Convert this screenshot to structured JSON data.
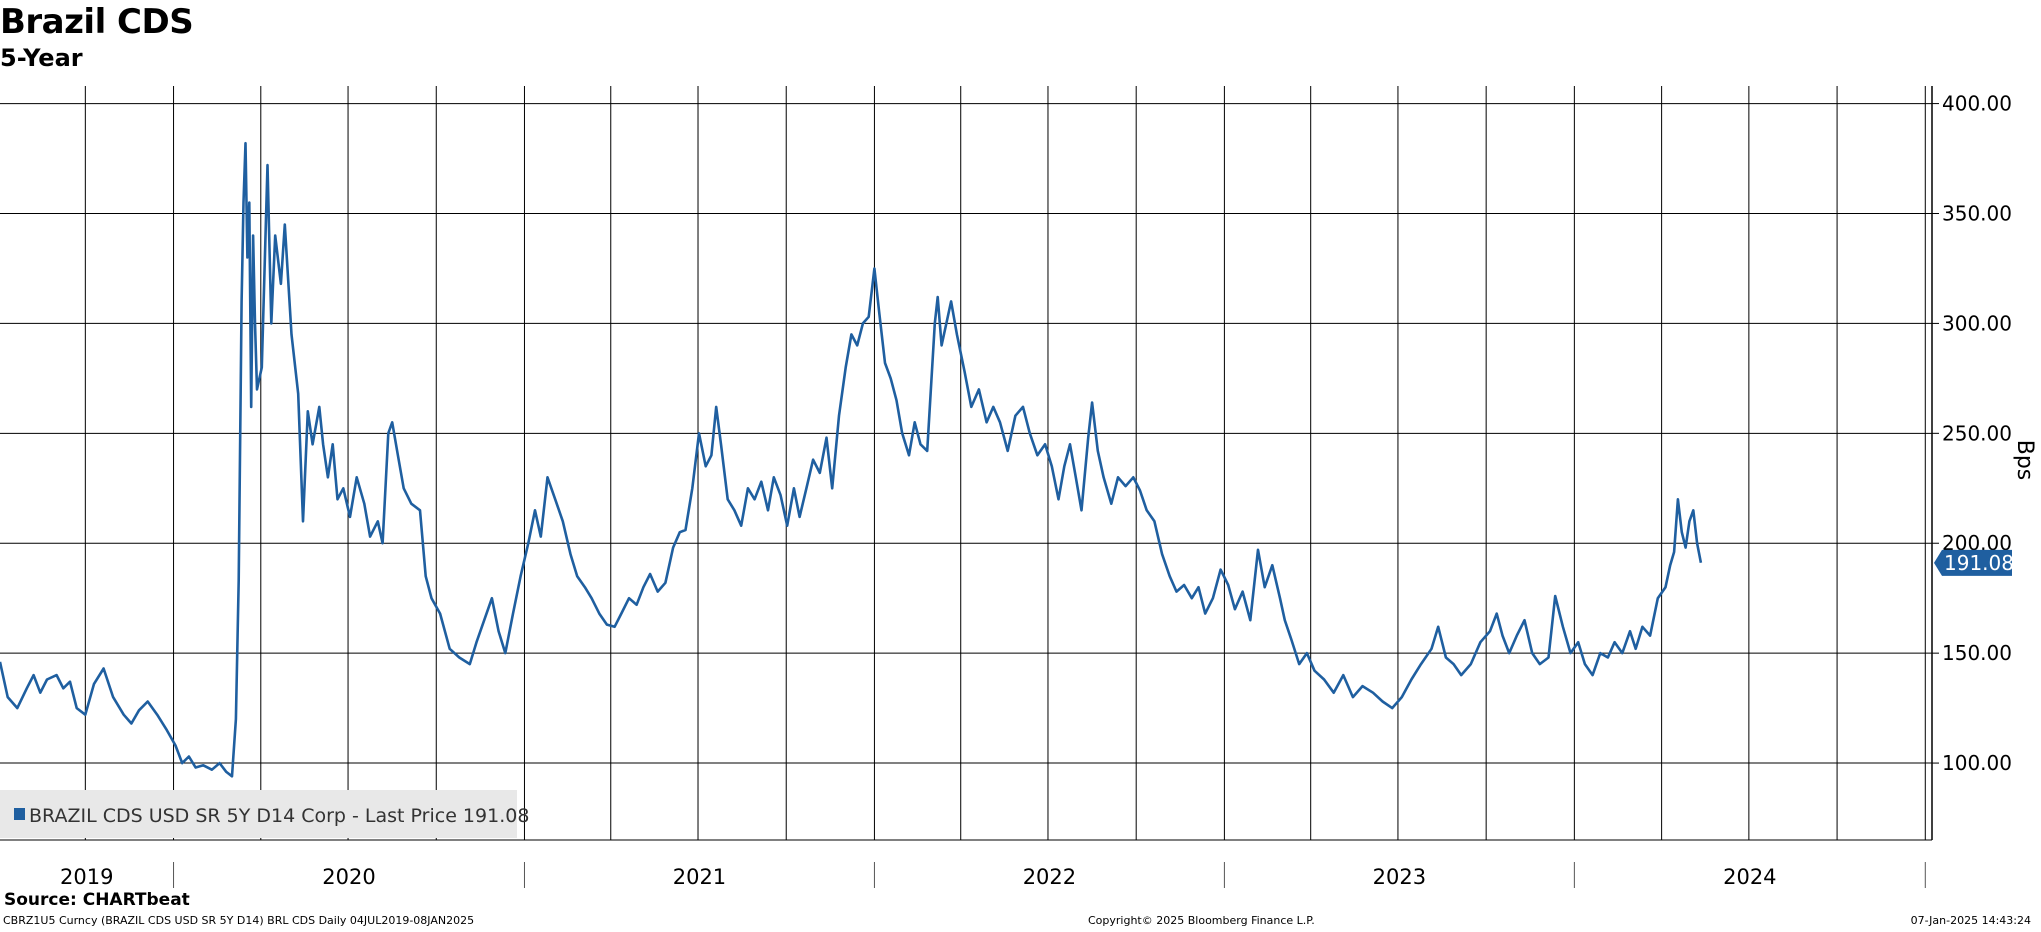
{
  "title": "Brazil CDS",
  "subtitle": "5-Year",
  "source": "Source: CHARTbeat",
  "footer": {
    "left": "CBRZ1U5 Curncy (BRAZIL CDS USD SR 5Y D14) BRL CDS  Daily 04JUL2019-08JAN2025",
    "center": "Copyright© 2025 Bloomberg Finance L.P.",
    "right": "07-Jan-2025 14:43:24"
  },
  "colors": {
    "line": "#1f5fa0",
    "grid": "#000000",
    "legend_bg": "#e8e8e8"
  },
  "chart_data": {
    "type": "line",
    "ylabel": "Bps",
    "ylim": [
      65,
      408
    ],
    "yticks": [
      "100.00",
      "150.00",
      "200.00",
      "250.00",
      "300.00",
      "350.00",
      "400.00"
    ],
    "x_year_labels": [
      "2019",
      "2020",
      "2021",
      "2022",
      "2023",
      "2024"
    ],
    "legend": "BRAZIL CDS USD SR 5Y D14 Corp - Last Price 191.08",
    "last_value_label": "191.08",
    "grid": true,
    "series": [
      {
        "name": "BRAZIL CDS USD SR 5Y D14 Corp",
        "points": [
          [
            "2019-07-04",
            146
          ],
          [
            "2019-07-12",
            130
          ],
          [
            "2019-07-22",
            125
          ],
          [
            "2019-08-01",
            134
          ],
          [
            "2019-08-08",
            140
          ],
          [
            "2019-08-15",
            132
          ],
          [
            "2019-08-22",
            138
          ],
          [
            "2019-09-01",
            140
          ],
          [
            "2019-09-08",
            134
          ],
          [
            "2019-09-15",
            137
          ],
          [
            "2019-09-22",
            125
          ],
          [
            "2019-10-01",
            122
          ],
          [
            "2019-10-10",
            136
          ],
          [
            "2019-10-20",
            143
          ],
          [
            "2019-10-30",
            130
          ],
          [
            "2019-11-10",
            122
          ],
          [
            "2019-11-18",
            118
          ],
          [
            "2019-11-26",
            124
          ],
          [
            "2019-12-05",
            128
          ],
          [
            "2019-12-15",
            122
          ],
          [
            "2019-12-25",
            115
          ],
          [
            "2020-01-03",
            108
          ],
          [
            "2020-01-10",
            100
          ],
          [
            "2020-01-17",
            103
          ],
          [
            "2020-01-24",
            98
          ],
          [
            "2020-02-01",
            99
          ],
          [
            "2020-02-10",
            97
          ],
          [
            "2020-02-18",
            100
          ],
          [
            "2020-02-25",
            96
          ],
          [
            "2020-03-02",
            94
          ],
          [
            "2020-03-06",
            120
          ],
          [
            "2020-03-09",
            183
          ],
          [
            "2020-03-12",
            310
          ],
          [
            "2020-03-14",
            355
          ],
          [
            "2020-03-16",
            382
          ],
          [
            "2020-03-18",
            330
          ],
          [
            "2020-03-20",
            355
          ],
          [
            "2020-03-22",
            262
          ],
          [
            "2020-03-24",
            340
          ],
          [
            "2020-03-26",
            300
          ],
          [
            "2020-03-28",
            270
          ],
          [
            "2020-04-02",
            280
          ],
          [
            "2020-04-08",
            372
          ],
          [
            "2020-04-12",
            300
          ],
          [
            "2020-04-16",
            340
          ],
          [
            "2020-04-22",
            318
          ],
          [
            "2020-04-26",
            345
          ],
          [
            "2020-05-03",
            295
          ],
          [
            "2020-05-10",
            268
          ],
          [
            "2020-05-15",
            210
          ],
          [
            "2020-05-20",
            260
          ],
          [
            "2020-05-25",
            245
          ],
          [
            "2020-06-01",
            262
          ],
          [
            "2020-06-05",
            245
          ],
          [
            "2020-06-10",
            230
          ],
          [
            "2020-06-15",
            245
          ],
          [
            "2020-06-20",
            220
          ],
          [
            "2020-06-26",
            225
          ],
          [
            "2020-07-03",
            212
          ],
          [
            "2020-07-10",
            230
          ],
          [
            "2020-07-18",
            218
          ],
          [
            "2020-07-24",
            203
          ],
          [
            "2020-08-01",
            210
          ],
          [
            "2020-08-06",
            200
          ],
          [
            "2020-08-12",
            250
          ],
          [
            "2020-08-16",
            255
          ],
          [
            "2020-08-22",
            240
          ],
          [
            "2020-08-28",
            225
          ],
          [
            "2020-09-05",
            218
          ],
          [
            "2020-09-14",
            215
          ],
          [
            "2020-09-20",
            185
          ],
          [
            "2020-09-26",
            175
          ],
          [
            "2020-10-05",
            168
          ],
          [
            "2020-10-15",
            152
          ],
          [
            "2020-10-25",
            148
          ],
          [
            "2020-11-05",
            145
          ],
          [
            "2020-11-12",
            155
          ],
          [
            "2020-11-20",
            165
          ],
          [
            "2020-11-28",
            175
          ],
          [
            "2020-12-05",
            160
          ],
          [
            "2020-12-12",
            150
          ],
          [
            "2020-12-20",
            168
          ],
          [
            "2020-12-28",
            185
          ],
          [
            "2021-01-05",
            200
          ],
          [
            "2021-01-12",
            215
          ],
          [
            "2021-01-18",
            203
          ],
          [
            "2021-01-25",
            230
          ],
          [
            "2021-02-02",
            220
          ],
          [
            "2021-02-10",
            210
          ],
          [
            "2021-02-18",
            195
          ],
          [
            "2021-02-25",
            185
          ],
          [
            "2021-03-05",
            180
          ],
          [
            "2021-03-12",
            175
          ],
          [
            "2021-03-20",
            168
          ],
          [
            "2021-03-28",
            163
          ],
          [
            "2021-04-05",
            162
          ],
          [
            "2021-04-12",
            168
          ],
          [
            "2021-04-20",
            175
          ],
          [
            "2021-04-28",
            172
          ],
          [
            "2021-05-05",
            180
          ],
          [
            "2021-05-12",
            186
          ],
          [
            "2021-05-20",
            178
          ],
          [
            "2021-05-28",
            182
          ],
          [
            "2021-06-05",
            198
          ],
          [
            "2021-06-12",
            205
          ],
          [
            "2021-06-18",
            206
          ],
          [
            "2021-06-25",
            225
          ],
          [
            "2021-07-02",
            250
          ],
          [
            "2021-07-09",
            235
          ],
          [
            "2021-07-15",
            240
          ],
          [
            "2021-07-20",
            262
          ],
          [
            "2021-07-25",
            245
          ],
          [
            "2021-08-01",
            220
          ],
          [
            "2021-08-08",
            215
          ],
          [
            "2021-08-15",
            208
          ],
          [
            "2021-08-22",
            225
          ],
          [
            "2021-08-29",
            220
          ],
          [
            "2021-09-05",
            228
          ],
          [
            "2021-09-12",
            215
          ],
          [
            "2021-09-18",
            230
          ],
          [
            "2021-09-25",
            222
          ],
          [
            "2021-10-02",
            208
          ],
          [
            "2021-10-09",
            225
          ],
          [
            "2021-10-15",
            212
          ],
          [
            "2021-10-22",
            225
          ],
          [
            "2021-10-29",
            238
          ],
          [
            "2021-11-05",
            232
          ],
          [
            "2021-11-12",
            248
          ],
          [
            "2021-11-18",
            225
          ],
          [
            "2021-11-25",
            258
          ],
          [
            "2021-12-02",
            280
          ],
          [
            "2021-12-08",
            295
          ],
          [
            "2021-12-14",
            290
          ],
          [
            "2021-12-20",
            300
          ],
          [
            "2021-12-26",
            303
          ],
          [
            "2022-01-01",
            325
          ],
          [
            "2022-01-06",
            305
          ],
          [
            "2022-01-12",
            282
          ],
          [
            "2022-01-18",
            275
          ],
          [
            "2022-01-24",
            265
          ],
          [
            "2022-01-30",
            250
          ],
          [
            "2022-02-06",
            240
          ],
          [
            "2022-02-12",
            255
          ],
          [
            "2022-02-18",
            245
          ],
          [
            "2022-02-25",
            242
          ],
          [
            "2022-03-05",
            300
          ],
          [
            "2022-03-08",
            312
          ],
          [
            "2022-03-12",
            290
          ],
          [
            "2022-03-18",
            302
          ],
          [
            "2022-03-22",
            310
          ],
          [
            "2022-03-28",
            295
          ],
          [
            "2022-04-05",
            278
          ],
          [
            "2022-04-12",
            262
          ],
          [
            "2022-04-20",
            270
          ],
          [
            "2022-04-28",
            255
          ],
          [
            "2022-05-05",
            262
          ],
          [
            "2022-05-12",
            255
          ],
          [
            "2022-05-20",
            242
          ],
          [
            "2022-05-28",
            258
          ],
          [
            "2022-06-05",
            262
          ],
          [
            "2022-06-12",
            250
          ],
          [
            "2022-06-20",
            240
          ],
          [
            "2022-06-28",
            245
          ],
          [
            "2022-07-05",
            235
          ],
          [
            "2022-07-12",
            220
          ],
          [
            "2022-07-18",
            235
          ],
          [
            "2022-07-24",
            245
          ],
          [
            "2022-07-30",
            230
          ],
          [
            "2022-08-05",
            215
          ],
          [
            "2022-08-12",
            248
          ],
          [
            "2022-08-16",
            264
          ],
          [
            "2022-08-22",
            242
          ],
          [
            "2022-08-28",
            230
          ],
          [
            "2022-09-05",
            218
          ],
          [
            "2022-09-12",
            230
          ],
          [
            "2022-09-20",
            226
          ],
          [
            "2022-09-28",
            230
          ],
          [
            "2022-10-05",
            224
          ],
          [
            "2022-10-12",
            215
          ],
          [
            "2022-10-20",
            210
          ],
          [
            "2022-10-28",
            195
          ],
          [
            "2022-11-05",
            185
          ],
          [
            "2022-11-12",
            178
          ],
          [
            "2022-11-20",
            181
          ],
          [
            "2022-11-28",
            175
          ],
          [
            "2022-12-05",
            180
          ],
          [
            "2022-12-12",
            168
          ],
          [
            "2022-12-20",
            175
          ],
          [
            "2022-12-28",
            188
          ],
          [
            "2023-01-05",
            181
          ],
          [
            "2023-01-12",
            170
          ],
          [
            "2023-01-20",
            178
          ],
          [
            "2023-01-28",
            165
          ],
          [
            "2023-02-05",
            197
          ],
          [
            "2023-02-12",
            180
          ],
          [
            "2023-02-20",
            190
          ],
          [
            "2023-02-28",
            175
          ],
          [
            "2023-03-05",
            165
          ],
          [
            "2023-03-12",
            156
          ],
          [
            "2023-03-20",
            145
          ],
          [
            "2023-03-28",
            150
          ],
          [
            "2023-04-05",
            142
          ],
          [
            "2023-04-15",
            138
          ],
          [
            "2023-04-25",
            132
          ],
          [
            "2023-05-05",
            140
          ],
          [
            "2023-05-15",
            130
          ],
          [
            "2023-05-25",
            135
          ],
          [
            "2023-06-05",
            132
          ],
          [
            "2023-06-15",
            128
          ],
          [
            "2023-06-25",
            125
          ],
          [
            "2023-07-05",
            130
          ],
          [
            "2023-07-15",
            138
          ],
          [
            "2023-07-25",
            145
          ],
          [
            "2023-08-05",
            152
          ],
          [
            "2023-08-12",
            162
          ],
          [
            "2023-08-20",
            148
          ],
          [
            "2023-08-28",
            145
          ],
          [
            "2023-09-05",
            140
          ],
          [
            "2023-09-15",
            145
          ],
          [
            "2023-09-25",
            155
          ],
          [
            "2023-10-05",
            160
          ],
          [
            "2023-10-12",
            168
          ],
          [
            "2023-10-18",
            158
          ],
          [
            "2023-10-25",
            150
          ],
          [
            "2023-11-02",
            158
          ],
          [
            "2023-11-10",
            165
          ],
          [
            "2023-11-18",
            150
          ],
          [
            "2023-11-26",
            145
          ],
          [
            "2023-12-05",
            148
          ],
          [
            "2023-12-12",
            176
          ],
          [
            "2023-12-20",
            162
          ],
          [
            "2023-12-28",
            150
          ],
          [
            "2024-01-05",
            155
          ],
          [
            "2024-01-12",
            145
          ],
          [
            "2024-01-20",
            140
          ],
          [
            "2024-01-28",
            150
          ],
          [
            "2024-02-05",
            148
          ],
          [
            "2024-02-12",
            155
          ],
          [
            "2024-02-20",
            150
          ],
          [
            "2024-02-28",
            160
          ],
          [
            "2024-03-05",
            152
          ],
          [
            "2024-03-12",
            162
          ],
          [
            "2024-03-20",
            158
          ],
          [
            "2024-03-28",
            175
          ],
          [
            "2024-04-05",
            180
          ],
          [
            "2024-04-10",
            190
          ],
          [
            "2024-04-14",
            196
          ],
          [
            "2024-04-18",
            220
          ],
          [
            "2024-04-22",
            205
          ],
          [
            "2024-04-26",
            198
          ],
          [
            "2024-04-30",
            210
          ],
          [
            "2024-05-04",
            215
          ],
          [
            "2024-05-08",
            200
          ],
          [
            "2024-05-12",
            191.08
          ]
        ]
      }
    ]
  }
}
